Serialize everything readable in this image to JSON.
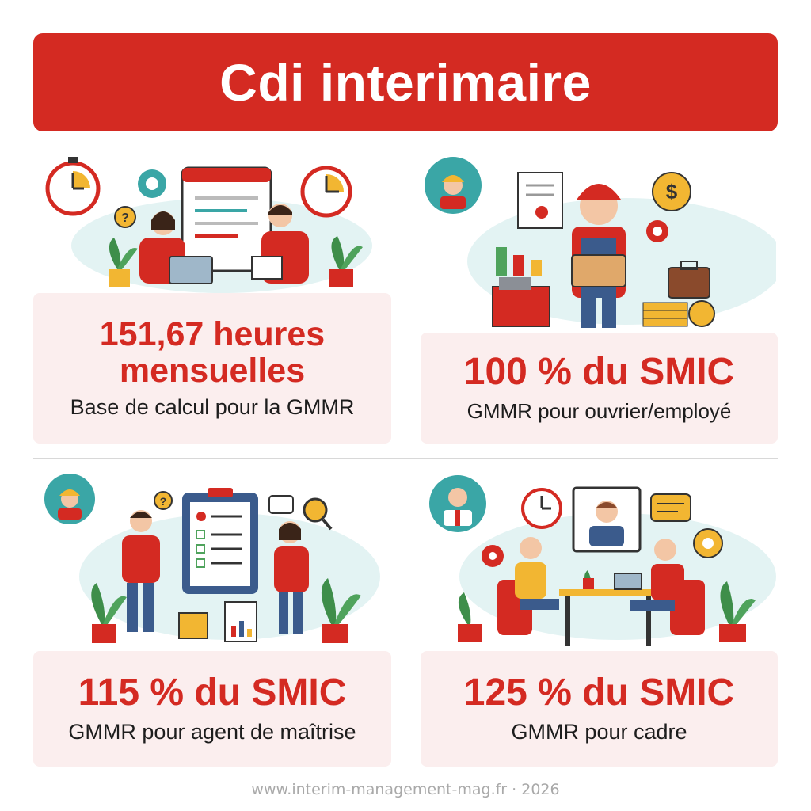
{
  "title": "Cdi interimaire",
  "panels": [
    {
      "stat": "151,67 heures mensuelles",
      "description": "Base de calcul pour la GMMR",
      "avatar_icon": "calendar-meeting-scene"
    },
    {
      "stat": "100 % du SMIC",
      "description": "GMMR pour ouvrier/employé",
      "avatar_icon": "worker-helmet-icon"
    },
    {
      "stat": "115 % du SMIC",
      "description": "GMMR pour agent de maîtrise",
      "avatar_icon": "worker-helmet-icon"
    },
    {
      "stat": "125 % du SMIC",
      "description": "GMMR pour cadre",
      "avatar_icon": "manager-icon"
    }
  ],
  "footer": "www.interim-management-mag.fr · 2026",
  "colors": {
    "accent": "#d42a22",
    "card_bg": "#fbeeee",
    "teal": "#3aa6a6",
    "gold": "#f2b632"
  }
}
